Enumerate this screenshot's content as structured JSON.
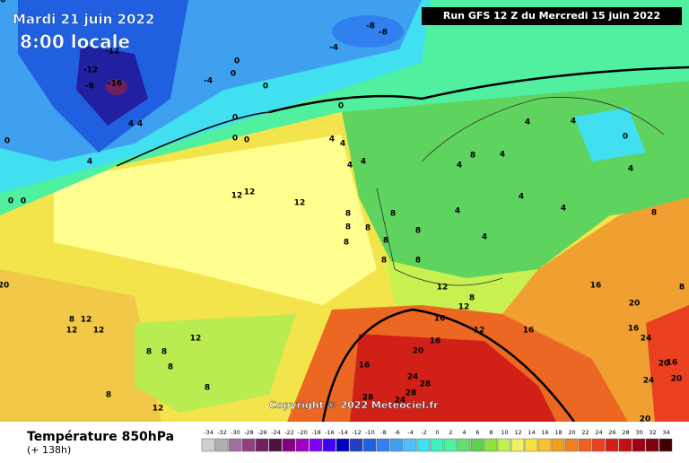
{
  "header": {
    "date": "Mardi 21 juin 2022",
    "time": "8:00 locale",
    "run": "Run GFS 12 Z du Mercredi 15 juin 2022",
    "copyright": "Copyright © 2022 Meteociel.fr"
  },
  "footer": {
    "title": "Température 850hPa",
    "lead": "(+ 138h)"
  },
  "colorbar": {
    "ticks": [
      -34,
      -32,
      -30,
      -28,
      -26,
      -24,
      -22,
      -20,
      -18,
      -16,
      -14,
      -12,
      -10,
      -8,
      -6,
      -4,
      -2,
      0,
      2,
      4,
      6,
      8,
      10,
      12,
      14,
      16,
      18,
      20,
      22,
      24,
      26,
      28,
      30,
      32,
      34
    ],
    "colors": [
      "#d0d0d0",
      "#b0b0b0",
      "#a070a0",
      "#904080",
      "#702060",
      "#501040",
      "#800080",
      "#a000c0",
      "#8000ff",
      "#4000ff",
      "#0000c0",
      "#2040c0",
      "#2060e0",
      "#3080f0",
      "#40a0f0",
      "#50c0f8",
      "#40e0f0",
      "#40f0c0",
      "#50f0a0",
      "#60e070",
      "#60d050",
      "#90e040",
      "#c0f050",
      "#f0f060",
      "#f8e040",
      "#f8c030",
      "#f0a020",
      "#f08020",
      "#f06020",
      "#e84020",
      "#d02018",
      "#c01010",
      "#a00010",
      "#800010",
      "#400000"
    ]
  },
  "map_labels": [
    -12,
    -8,
    -8,
    -12,
    -16,
    -8,
    -4,
    -4,
    0,
    0,
    0,
    0,
    4,
    4,
    0,
    0,
    0,
    0,
    4,
    0,
    0,
    4,
    4,
    4,
    4,
    4,
    4,
    8,
    4,
    4,
    0,
    4,
    4,
    4,
    4,
    4,
    12,
    12,
    12,
    8,
    8,
    8,
    8,
    8,
    8,
    8,
    8,
    8,
    8,
    16,
    12,
    8,
    12,
    16,
    12,
    16,
    20,
    16,
    16,
    20,
    24,
    20,
    16,
    16,
    24,
    28,
    28,
    28,
    24,
    24,
    20,
    20,
    20,
    8,
    12,
    12,
    12,
    12,
    8,
    8,
    8,
    8,
    8,
    12,
    8,
    16
  ]
}
